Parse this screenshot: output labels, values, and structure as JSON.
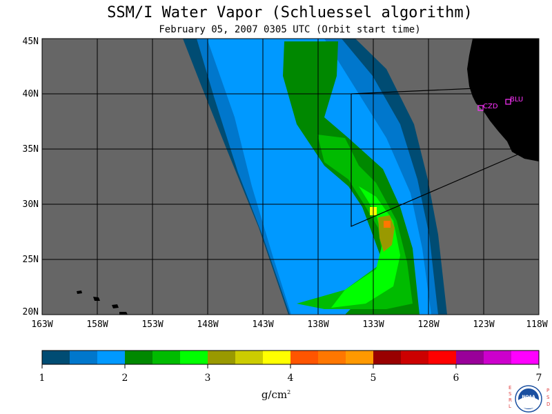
{
  "title": "SSM/I Water Vapor (Schluessel algorithm)",
  "subtitle": "February 05, 2007  0305 UTC  (Orbit start time)",
  "map": {
    "lat_labels": [
      "45N",
      "40N",
      "35N",
      "30N",
      "25N",
      "20N"
    ],
    "lon_labels": [
      "163W",
      "158W",
      "153W",
      "148W",
      "143W",
      "138W",
      "133W",
      "128W",
      "123W",
      "118W"
    ],
    "stations": [
      {
        "label": "CZD",
        "color": "#ff33ff"
      },
      {
        "label": "BLU",
        "color": "#ff33ff"
      }
    ],
    "land_color": "#000000",
    "nodata_color": "#666666"
  },
  "colorbar": {
    "colors": [
      "#004c73",
      "#0077cc",
      "#0099ff",
      "#008800",
      "#00bb00",
      "#00ff00",
      "#999900",
      "#cccc00",
      "#ffff00",
      "#ff5500",
      "#ff7700",
      "#ff9900",
      "#990000",
      "#cc0000",
      "#ff0000",
      "#990099",
      "#cc00cc",
      "#ff00ff"
    ],
    "tick_labels": [
      "1",
      "2",
      "3",
      "4",
      "5",
      "6",
      "7"
    ],
    "units_base": "g/cm",
    "units_sup": "2"
  },
  "logo": {
    "left_letters": [
      "E",
      "S",
      "R",
      "L"
    ],
    "right_letters": [
      "P",
      "S",
      "D"
    ],
    "center": "NOAA"
  }
}
